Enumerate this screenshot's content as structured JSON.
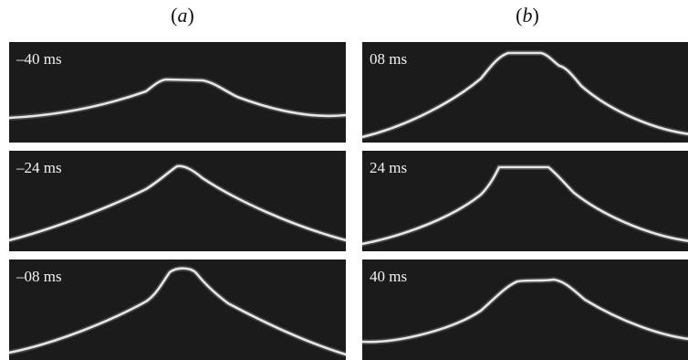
{
  "figure": {
    "panel_labels": {
      "a": {
        "open": "(",
        "letter": "a",
        "close": ")"
      },
      "b": {
        "open": "(",
        "letter": "b",
        "close": ")"
      }
    },
    "frames": {
      "a": [
        {
          "time": "–40 ms"
        },
        {
          "time": "–24 ms"
        },
        {
          "time": "–08 ms"
        }
      ],
      "b": [
        {
          "time": "08 ms"
        },
        {
          "time": "24 ms"
        },
        {
          "time": "40 ms"
        }
      ]
    }
  }
}
